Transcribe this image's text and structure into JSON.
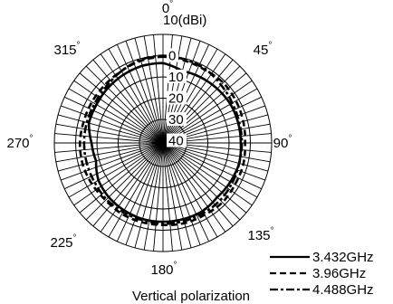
{
  "chart_data": {
    "type": "polar-line",
    "caption": "Vertical polarization",
    "radial_unit": "10(dBi)",
    "radial_ticks": [
      "0",
      "10",
      "20",
      "30",
      "40"
    ],
    "radial_values": [
      0,
      -10,
      -20,
      -30,
      -40
    ],
    "r_range": [
      -40,
      10
    ],
    "angle_labels": [
      "0",
      "45",
      "90",
      "135",
      "180",
      "225",
      "270",
      "315"
    ],
    "angle_values": [
      0,
      45,
      90,
      135,
      180,
      225,
      270,
      315
    ],
    "degree_symbol": "°",
    "angle_step_deg": 5,
    "legend_position": "bottom-right",
    "series": [
      {
        "name": "3.432GHz",
        "dash": "solid",
        "angles": [
          0,
          15,
          30,
          45,
          60,
          75,
          90,
          105,
          120,
          135,
          150,
          165,
          180,
          195,
          210,
          225,
          240,
          255,
          270,
          285,
          300,
          315,
          330,
          345
        ],
        "values": [
          -3.5,
          -6,
          -5.5,
          -5,
          -4.5,
          -4.5,
          -4.5,
          -4,
          -4.5,
          -5,
          -4,
          -4,
          -4,
          -4,
          -4.5,
          -5,
          -6,
          -8.5,
          -7.5,
          -5,
          -5,
          -4.5,
          -4,
          -3.5
        ]
      },
      {
        "name": "3.96GHz",
        "dash": "dashed",
        "angles": [
          0,
          15,
          30,
          45,
          60,
          75,
          90,
          105,
          120,
          135,
          150,
          165,
          180,
          195,
          210,
          225,
          240,
          255,
          270,
          285,
          300,
          315,
          330,
          345
        ],
        "values": [
          -0.5,
          -1,
          -1.5,
          -1,
          -1.5,
          -2,
          -2.5,
          -2,
          -2,
          -1.5,
          -2,
          -2,
          -2.5,
          -2.5,
          -2.5,
          -3,
          -2.5,
          -2,
          -2,
          -2.5,
          -2.5,
          -2.5,
          -2,
          -1
        ]
      },
      {
        "name": "4.488GHz",
        "dash": "dashdot",
        "angles": [
          0,
          15,
          30,
          45,
          60,
          75,
          90,
          105,
          120,
          135,
          150,
          165,
          180,
          195,
          210,
          225,
          240,
          255,
          270,
          285,
          300,
          315,
          330,
          345
        ],
        "values": [
          0,
          -0.5,
          -1,
          -2.5,
          -3.5,
          -4,
          -4,
          -4,
          -3.5,
          -3,
          -3,
          -3,
          -3,
          -3.5,
          -3.5,
          -3.5,
          -4,
          -4,
          -4,
          -4,
          -4,
          -3.5,
          -2,
          -0.5
        ]
      }
    ]
  }
}
